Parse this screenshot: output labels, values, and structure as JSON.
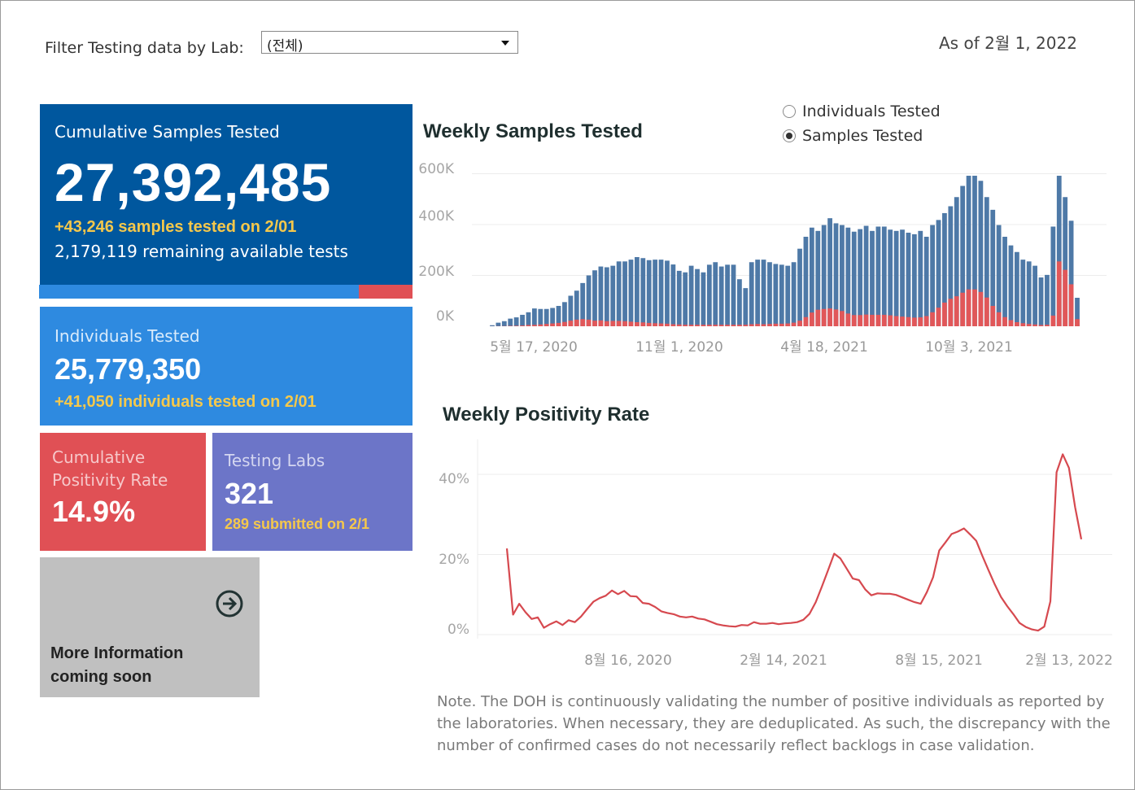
{
  "filter": {
    "label": "Filter Testing data by Lab:",
    "selected": "(전체)"
  },
  "as_of": "As of 2월 1, 2022",
  "cumulative_samples": {
    "title": "Cumulative Samples Tested",
    "value": "27,392,485",
    "today": "+43,246 samples tested on 2/01",
    "remaining": "2,179,119 remaining available tests",
    "used_share": 0.857
  },
  "individuals": {
    "title": "Individuals Tested",
    "value": "25,779,350",
    "today": "+41,050  individuals  tested on 2/01"
  },
  "positivity": {
    "title_line1": "Cumulative",
    "title_line2": "Positivity Rate",
    "value": "14.9%"
  },
  "labs": {
    "title": "Testing Labs",
    "value": "321",
    "submitted": "289 submitted on 2/1"
  },
  "more_info": {
    "line1": "More Information",
    "line2": "coming soon",
    "icon": "arrow-right-circle-icon"
  },
  "toggle": {
    "options": [
      "Individuals Tested",
      "Samples Tested"
    ],
    "selected": "Samples Tested"
  },
  "colors": {
    "primary": "#00579e",
    "blue": "#2e8ae0",
    "red": "#e05055",
    "purple": "#6c75c8",
    "gray": "#c0c0c0",
    "bar_blue": "#4e79a7",
    "bar_red": "#e15759",
    "line_red": "#d6494f",
    "yellow": "#f5c84b"
  },
  "note": "Note. The DOH is continuously validating the number of positive individuals as reported by the laboratories. When necessary, they are deduplicated. As such, the discrepancy with the number of confirmed cases do not necessarily reflect backlogs in case validation.",
  "chart_data": [
    {
      "type": "bar",
      "title": "Weekly Samples Tested",
      "y_ticks": [
        "600K",
        "400K",
        "200K",
        "0K"
      ],
      "x_ticks": [
        "5월 17, 2020",
        "11월 1, 2020",
        "4월 18, 2021",
        "10월 3, 2021"
      ],
      "ylim": [
        0,
        640000
      ],
      "grid": true,
      "series": [
        {
          "name": "Samples Tested",
          "values": [
            4000,
            14000,
            20000,
            30000,
            35000,
            45000,
            55000,
            70000,
            68000,
            68000,
            72000,
            80000,
            95000,
            120000,
            140000,
            170000,
            200000,
            220000,
            235000,
            232000,
            238000,
            255000,
            255000,
            262000,
            272000,
            268000,
            260000,
            262000,
            262000,
            258000,
            243000,
            218000,
            212000,
            238000,
            225000,
            212000,
            242000,
            252000,
            235000,
            242000,
            242000,
            185000,
            150000,
            252000,
            262000,
            262000,
            252000,
            245000,
            242000,
            238000,
            252000,
            305000,
            352000,
            388000,
            375000,
            398000,
            425000,
            405000,
            398000,
            388000,
            372000,
            382000,
            395000,
            375000,
            392000,
            392000,
            380000,
            375000,
            380000,
            368000,
            362000,
            375000,
            352000,
            398000,
            418000,
            445000,
            472000,
            508000,
            552000,
            592000,
            592000,
            572000,
            508000,
            458000,
            398000,
            352000,
            318000,
            292000,
            262000,
            255000,
            238000,
            192000,
            202000,
            392000,
            592000,
            508000,
            415000,
            112000
          ]
        },
        {
          "name": "Positive",
          "values": [
            200,
            600,
            800,
            1500,
            2000,
            3000,
            5000,
            5500,
            7000,
            9000,
            11000,
            13000,
            17000,
            22000,
            26000,
            28000,
            26000,
            22000,
            23000,
            20000,
            21000,
            21000,
            20000,
            18000,
            16000,
            15000,
            13000,
            12000,
            11000,
            10000,
            8000,
            7000,
            6000,
            6000,
            6000,
            6000,
            6000,
            6000,
            6000,
            6000,
            6000,
            6000,
            6000,
            8000,
            9000,
            8000,
            9000,
            10000,
            10000,
            11000,
            14000,
            22000,
            36000,
            54000,
            65000,
            68000,
            70000,
            66000,
            60000,
            50000,
            44000,
            44000,
            46000,
            45000,
            45000,
            45000,
            43000,
            40000,
            38000,
            36000,
            34000,
            35000,
            40000,
            55000,
            73000,
            93000,
            108000,
            118000,
            132000,
            145000,
            145000,
            135000,
            113000,
            80000,
            55000,
            36000,
            24000,
            16000,
            12000,
            9000,
            7000,
            5000,
            6000,
            42000,
            255000,
            222000,
            165000,
            28000
          ]
        }
      ]
    },
    {
      "type": "line",
      "title": "Weekly Positivity Rate",
      "y_ticks": [
        "40%",
        "20%",
        "0%"
      ],
      "x_ticks": [
        "8월 16, 2020",
        "2월 14, 2021",
        "8월 15, 2021",
        "2월 13, 2022"
      ],
      "ylim": [
        0,
        48
      ],
      "grid": true,
      "series": [
        {
          "name": "Positivity Rate",
          "values": [
            21.5,
            5.0,
            7.7,
            5.6,
            3.9,
            4.3,
            1.7,
            2.6,
            3.3,
            2.4,
            3.6,
            3.1,
            4.5,
            6.4,
            8.2,
            9.1,
            9.7,
            11.0,
            10.1,
            10.9,
            9.6,
            9.5,
            7.9,
            7.7,
            6.9,
            5.8,
            5.4,
            5.1,
            4.5,
            4.3,
            4.5,
            4.0,
            3.8,
            3.2,
            2.6,
            2.3,
            2.1,
            2.0,
            2.4,
            2.3,
            3.1,
            2.7,
            2.7,
            2.9,
            2.6,
            2.8,
            2.9,
            3.1,
            3.7,
            5.2,
            8.1,
            12.0,
            16.1,
            20.2,
            19.0,
            16.5,
            14.0,
            13.6,
            11.3,
            9.8,
            10.3,
            10.2,
            10.2,
            9.9,
            9.3,
            8.7,
            8.1,
            7.7,
            10.6,
            14.3,
            21.0,
            23.0,
            25.1,
            25.7,
            26.5,
            25.0,
            23.4,
            19.6,
            16.0,
            12.5,
            9.4,
            7.1,
            5.1,
            2.9,
            1.9,
            1.3,
            1.0,
            2.0,
            8.3,
            40.5,
            45.0,
            41.6,
            31.8,
            23.8
          ]
        }
      ]
    }
  ]
}
